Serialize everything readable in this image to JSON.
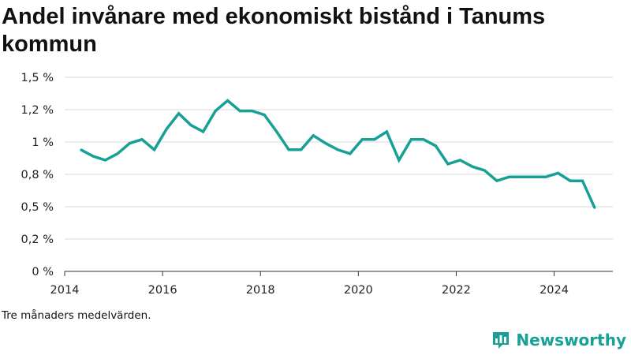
{
  "chart_data": {
    "type": "line",
    "title": "Andel invånare med ekonomiskt bistånd i Tanums kommun",
    "note": "Tre månaders medelvärden.",
    "xlim": [
      2014,
      2025.2
    ],
    "ylim": [
      0,
      1.5
    ],
    "x_ticks": [
      {
        "value": 2014,
        "label": "2014"
      },
      {
        "value": 2016,
        "label": "2016"
      },
      {
        "value": 2018,
        "label": "2018"
      },
      {
        "value": 2020,
        "label": "2020"
      },
      {
        "value": 2022,
        "label": "2022"
      },
      {
        "value": 2024,
        "label": "2024"
      }
    ],
    "y_ticks": [
      {
        "value": 0,
        "label": "0 %"
      },
      {
        "value": 0.25,
        "label": "0,2 %"
      },
      {
        "value": 0.5,
        "label": "0,5 %"
      },
      {
        "value": 0.75,
        "label": "0,8 %"
      },
      {
        "value": 1.0,
        "label": "1 %"
      },
      {
        "value": 1.25,
        "label": "1,2 %"
      },
      {
        "value": 1.5,
        "label": "1,5 %"
      }
    ],
    "grid": "horizontal",
    "color": "#17a096",
    "x": [
      2014.33,
      2014.58,
      2014.83,
      2015.08,
      2015.33,
      2015.58,
      2015.83,
      2016.08,
      2016.33,
      2016.58,
      2016.83,
      2017.08,
      2017.33,
      2017.58,
      2017.83,
      2018.08,
      2018.33,
      2018.58,
      2018.83,
      2019.08,
      2019.33,
      2019.58,
      2019.83,
      2020.08,
      2020.33,
      2020.58,
      2020.83,
      2021.08,
      2021.33,
      2021.58,
      2021.83,
      2022.08,
      2022.33,
      2022.58,
      2022.83,
      2023.08,
      2023.33,
      2023.58,
      2023.83,
      2024.08,
      2024.33,
      2024.58,
      2024.83
    ],
    "values": [
      0.94,
      0.89,
      0.86,
      0.91,
      0.99,
      1.02,
      0.94,
      1.1,
      1.22,
      1.13,
      1.08,
      1.24,
      1.32,
      1.24,
      1.24,
      1.21,
      1.08,
      0.94,
      0.94,
      1.05,
      0.99,
      0.94,
      0.91,
      1.02,
      1.02,
      1.08,
      0.86,
      1.02,
      1.02,
      0.97,
      0.83,
      0.86,
      0.81,
      0.78,
      0.7,
      0.73,
      0.73,
      0.73,
      0.73,
      0.76,
      0.7,
      0.7,
      0.49
    ]
  },
  "brand": {
    "name": "Newsworthy",
    "icon": "bar-chart-logo-icon",
    "color": "#17a096"
  }
}
